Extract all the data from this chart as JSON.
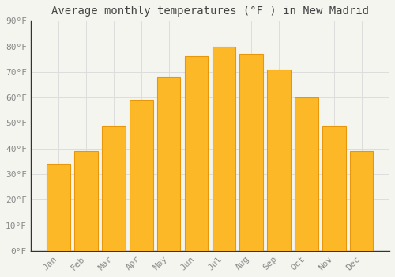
{
  "title": "Average monthly temperatures (°F ) in New Madrid",
  "months": [
    "Jan",
    "Feb",
    "Mar",
    "Apr",
    "May",
    "Jun",
    "Jul",
    "Aug",
    "Sep",
    "Oct",
    "Nov",
    "Dec"
  ],
  "values": [
    34,
    39,
    49,
    59,
    68,
    76,
    80,
    77,
    71,
    60,
    49,
    39
  ],
  "bar_color": "#FDB827",
  "bar_edge_color": "#E8960A",
  "background_color": "#F5F5F0",
  "grid_color": "#DDDDDD",
  "ylim": [
    0,
    90
  ],
  "yticks": [
    0,
    10,
    20,
    30,
    40,
    50,
    60,
    70,
    80,
    90
  ],
  "ytick_labels": [
    "0°F",
    "10°F",
    "20°F",
    "30°F",
    "40°F",
    "50°F",
    "60°F",
    "70°F",
    "80°F",
    "90°F"
  ],
  "title_fontsize": 10,
  "tick_fontsize": 8,
  "tick_color": "#888888",
  "title_color": "#444444",
  "font_family": "monospace",
  "bar_width": 0.85
}
